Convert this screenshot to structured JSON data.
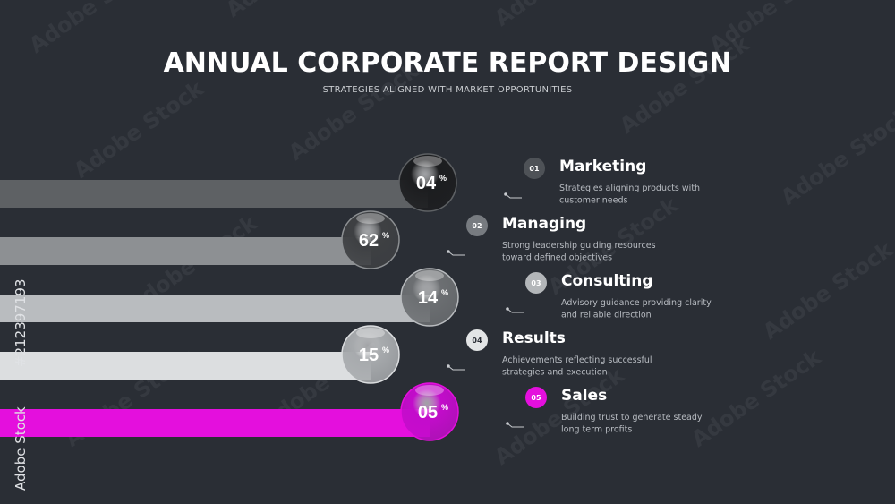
{
  "header": {
    "title": "ANNUAL CORPORATE REPORT DESIGN",
    "subtitle": "STRATEGIES ALIGNED WITH MARKET OPPORTUNITIES"
  },
  "items": [
    {
      "number": "01",
      "title": "Marketing",
      "description": [
        "Strategies aligning products with",
        "customer needs"
      ],
      "value": "04",
      "unit": "%",
      "color": "#5e6164",
      "ball": "#1c1d1f",
      "badge": "#4e5257"
    },
    {
      "number": "02",
      "title": "Managing",
      "description": [
        "Strong leadership guiding resources",
        "toward defined objectives"
      ],
      "value": "62",
      "unit": "%",
      "color": "#8d9093",
      "ball": "#3e4043",
      "badge": "#777b80"
    },
    {
      "number": "03",
      "title": "Consulting",
      "description": [
        "Advisory guidance providing clarity",
        "and reliable direction"
      ],
      "value": "14",
      "unit": "%",
      "color": "#b9bcbf",
      "ball": "#6c6f72",
      "badge": "#b3b6b9"
    },
    {
      "number": "04",
      "title": "Results",
      "description": [
        "Achievements reflecting successful",
        "strategies and execution"
      ],
      "value": "15",
      "unit": "%",
      "color": "#dcdee0",
      "ball": "#a7aaad",
      "badge": "#e3e5e6"
    },
    {
      "number": "05",
      "title": "Sales",
      "description": [
        "Building trust to generate steady",
        "long term profits"
      ],
      "value": "05",
      "unit": "%",
      "color": "#e40fdd",
      "ball": "#c30ccb",
      "badge": "#e40fdd"
    }
  ],
  "watermark": {
    "brand": "Adobe Stock",
    "id": "#212397193"
  }
}
